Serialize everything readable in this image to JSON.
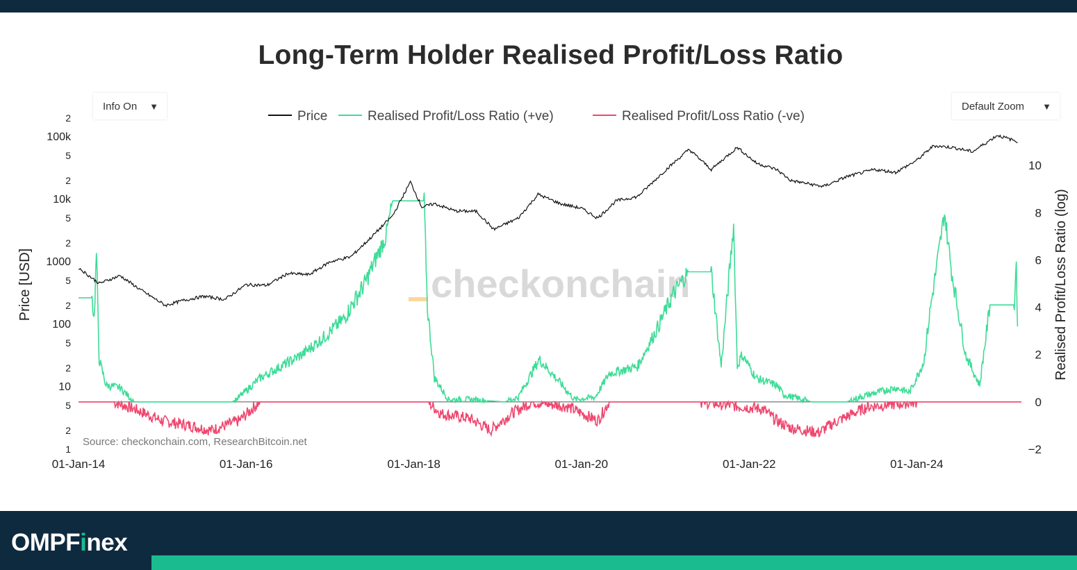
{
  "header": {
    "title": "Long-Term Holder Realised Profit/Loss Ratio"
  },
  "controls": {
    "info_label": "Info On",
    "zoom_label": "Default Zoom"
  },
  "source_note": "Source: checkonchain.com, ResearchBitcoin.net",
  "watermark": "checkonchain",
  "brand": {
    "part1": "OMPF",
    "accent": "i",
    "part2": "nex",
    "accent_color": "#1abc8f"
  },
  "colors": {
    "price": "#111111",
    "positive": "#3ddc97",
    "negative": "#ef476f",
    "header_bg": "#0e2a3f"
  },
  "chart_data": {
    "type": "line",
    "legend_placement": "top-center",
    "grid": false,
    "xaxis": {
      "ticks": [
        "01-Jan-14",
        "01-Jan-16",
        "01-Jan-18",
        "01-Jan-20",
        "01-Jan-22",
        "01-Jan-24"
      ],
      "range": [
        "2014-01-01",
        "2025-04-01"
      ]
    },
    "yaxis_left": {
      "label": "Price [USD]",
      "scale": "log",
      "range": [
        1,
        200000
      ],
      "ticks": [
        {
          "v": 1,
          "t": "1"
        },
        {
          "v": 2,
          "t": "2"
        },
        {
          "v": 5,
          "t": "5"
        },
        {
          "v": 10,
          "t": "10"
        },
        {
          "v": 20,
          "t": "2"
        },
        {
          "v": 50,
          "t": "5"
        },
        {
          "v": 100,
          "t": "100"
        },
        {
          "v": 200,
          "t": "2"
        },
        {
          "v": 500,
          "t": "5"
        },
        {
          "v": 1000,
          "t": "1000"
        },
        {
          "v": 2000,
          "t": "2"
        },
        {
          "v": 5000,
          "t": "5"
        },
        {
          "v": 10000,
          "t": "10k"
        },
        {
          "v": 20000,
          "t": "2"
        },
        {
          "v": 50000,
          "t": "5"
        },
        {
          "v": 100000,
          "t": "100k"
        },
        {
          "v": 200000,
          "t": "2"
        }
      ]
    },
    "yaxis_right": {
      "label": "Realised Profit/Loss Ratio (log)",
      "range": [
        -2,
        12
      ],
      "ticks": [
        {
          "v": -2,
          "t": "−2"
        },
        {
          "v": 0,
          "t": "0"
        },
        {
          "v": 2,
          "t": "2"
        },
        {
          "v": 4,
          "t": "4"
        },
        {
          "v": 6,
          "t": "6"
        },
        {
          "v": 8,
          "t": "8"
        },
        {
          "v": 10,
          "t": "10"
        }
      ]
    },
    "series": [
      {
        "name": "Price",
        "axis": "left",
        "x": [
          "2014-01-01",
          "2014-04-01",
          "2014-07-01",
          "2014-10-01",
          "2015-01-15",
          "2015-04-01",
          "2015-07-01",
          "2015-10-01",
          "2016-01-01",
          "2016-04-01",
          "2016-07-01",
          "2016-10-01",
          "2017-01-01",
          "2017-04-01",
          "2017-07-01",
          "2017-10-01",
          "2017-12-17",
          "2018-02-05",
          "2018-04-01",
          "2018-07-01",
          "2018-10-01",
          "2018-12-15",
          "2019-04-01",
          "2019-06-26",
          "2019-10-01",
          "2019-12-31",
          "2020-03-12",
          "2020-06-01",
          "2020-09-01",
          "2020-12-31",
          "2021-04-14",
          "2021-07-20",
          "2021-11-10",
          "2022-02-01",
          "2022-05-01",
          "2022-07-01",
          "2022-11-20",
          "2023-03-01",
          "2023-07-01",
          "2023-10-01",
          "2024-01-01",
          "2024-03-14",
          "2024-06-01",
          "2024-09-01",
          "2024-12-17",
          "2025-03-15"
        ],
        "values": [
          800,
          450,
          600,
          350,
          200,
          240,
          280,
          250,
          430,
          420,
          650,
          620,
          1000,
          1200,
          2500,
          5500,
          19000,
          7500,
          8500,
          6500,
          6400,
          3300,
          5000,
          12000,
          8500,
          7200,
          5000,
          9500,
          11000,
          29000,
          63000,
          30000,
          68000,
          38000,
          30000,
          20000,
          16000,
          23000,
          30000,
          27000,
          42000,
          72000,
          68000,
          58000,
          106000,
          84000
        ]
      },
      {
        "name": "Realised Profit/Loss Ratio (+ve)",
        "axis": "right",
        "x": [
          "2014-01-01",
          "2014-03-01",
          "2014-03-10",
          "2014-03-20",
          "2014-04-01",
          "2014-05-01",
          "2014-07-01",
          "2014-09-01",
          "2015-01-01",
          "2015-06-01",
          "2015-11-01",
          "2015-11-20",
          "2016-03-01",
          "2016-06-01",
          "2016-09-01",
          "2016-12-01",
          "2017-03-01",
          "2017-06-01",
          "2017-09-01",
          "2017-10-01",
          "2018-02-15",
          "2018-03-01",
          "2018-04-01",
          "2018-06-01",
          "2018-09-01",
          "2019-02-01",
          "2019-04-01",
          "2019-07-01",
          "2019-10-01",
          "2019-12-01",
          "2020-03-01",
          "2020-05-01",
          "2020-09-01",
          "2020-12-01",
          "2021-02-01",
          "2021-04-10",
          "2021-04-15",
          "2021-07-20",
          "2021-09-01",
          "2021-10-25",
          "2021-11-10",
          "2021-12-01",
          "2022-02-01",
          "2022-05-01",
          "2022-06-01",
          "2022-10-01",
          "2023-03-01",
          "2023-06-01",
          "2023-10-01",
          "2023-12-01",
          "2024-02-01",
          "2024-03-01",
          "2024-04-01",
          "2024-05-01",
          "2024-06-01",
          "2024-08-01",
          "2024-10-01",
          "2024-11-15",
          "2025-03-01",
          "2025-03-10",
          "2025-03-15"
        ],
        "values": [
          4.4,
          4.4,
          3.5,
          6.3,
          1.8,
          0.7,
          0.6,
          0,
          0,
          0,
          0,
          0.1,
          1,
          1.5,
          2,
          2.7,
          3.5,
          5,
          7,
          8.5,
          8.5,
          4,
          1,
          0.1,
          0.1,
          0,
          0.2,
          1.8,
          0.8,
          0.1,
          0.2,
          1.2,
          1.5,
          3.2,
          4.5,
          5.5,
          5.5,
          5.5,
          1.5,
          7.5,
          1.5,
          2,
          1,
          0.7,
          0.3,
          0,
          0,
          0.3,
          0.6,
          0.4,
          1.7,
          4,
          6,
          8,
          5.5,
          2,
          0.7,
          4.1,
          4.1,
          6,
          2.9
        ]
      },
      {
        "name": "Realised Profit/Loss Ratio (-ve)",
        "axis": "right",
        "x": [
          "2014-01-01",
          "2014-06-01",
          "2014-09-01",
          "2015-01-01",
          "2015-05-01",
          "2015-08-01",
          "2015-12-01",
          "2016-03-01",
          "2017-01-01",
          "2018-03-01",
          "2018-05-01",
          "2018-09-01",
          "2018-12-01",
          "2019-03-01",
          "2019-06-01",
          "2019-11-01",
          "2020-03-12",
          "2020-05-01",
          "2021-06-01",
          "2022-03-01",
          "2022-05-01",
          "2022-07-01",
          "2022-11-01",
          "2023-01-01",
          "2023-06-01",
          "2024-01-01",
          "2025-04-01"
        ],
        "values": [
          0,
          0,
          -0.3,
          -0.8,
          -1,
          -1.2,
          -0.8,
          0,
          0,
          0,
          -0.5,
          -0.7,
          -1.2,
          -0.5,
          0,
          -0.2,
          -0.8,
          0,
          0,
          -0.3,
          -0.8,
          -1.1,
          -1.3,
          -0.9,
          -0.2,
          0,
          0
        ]
      }
    ]
  }
}
